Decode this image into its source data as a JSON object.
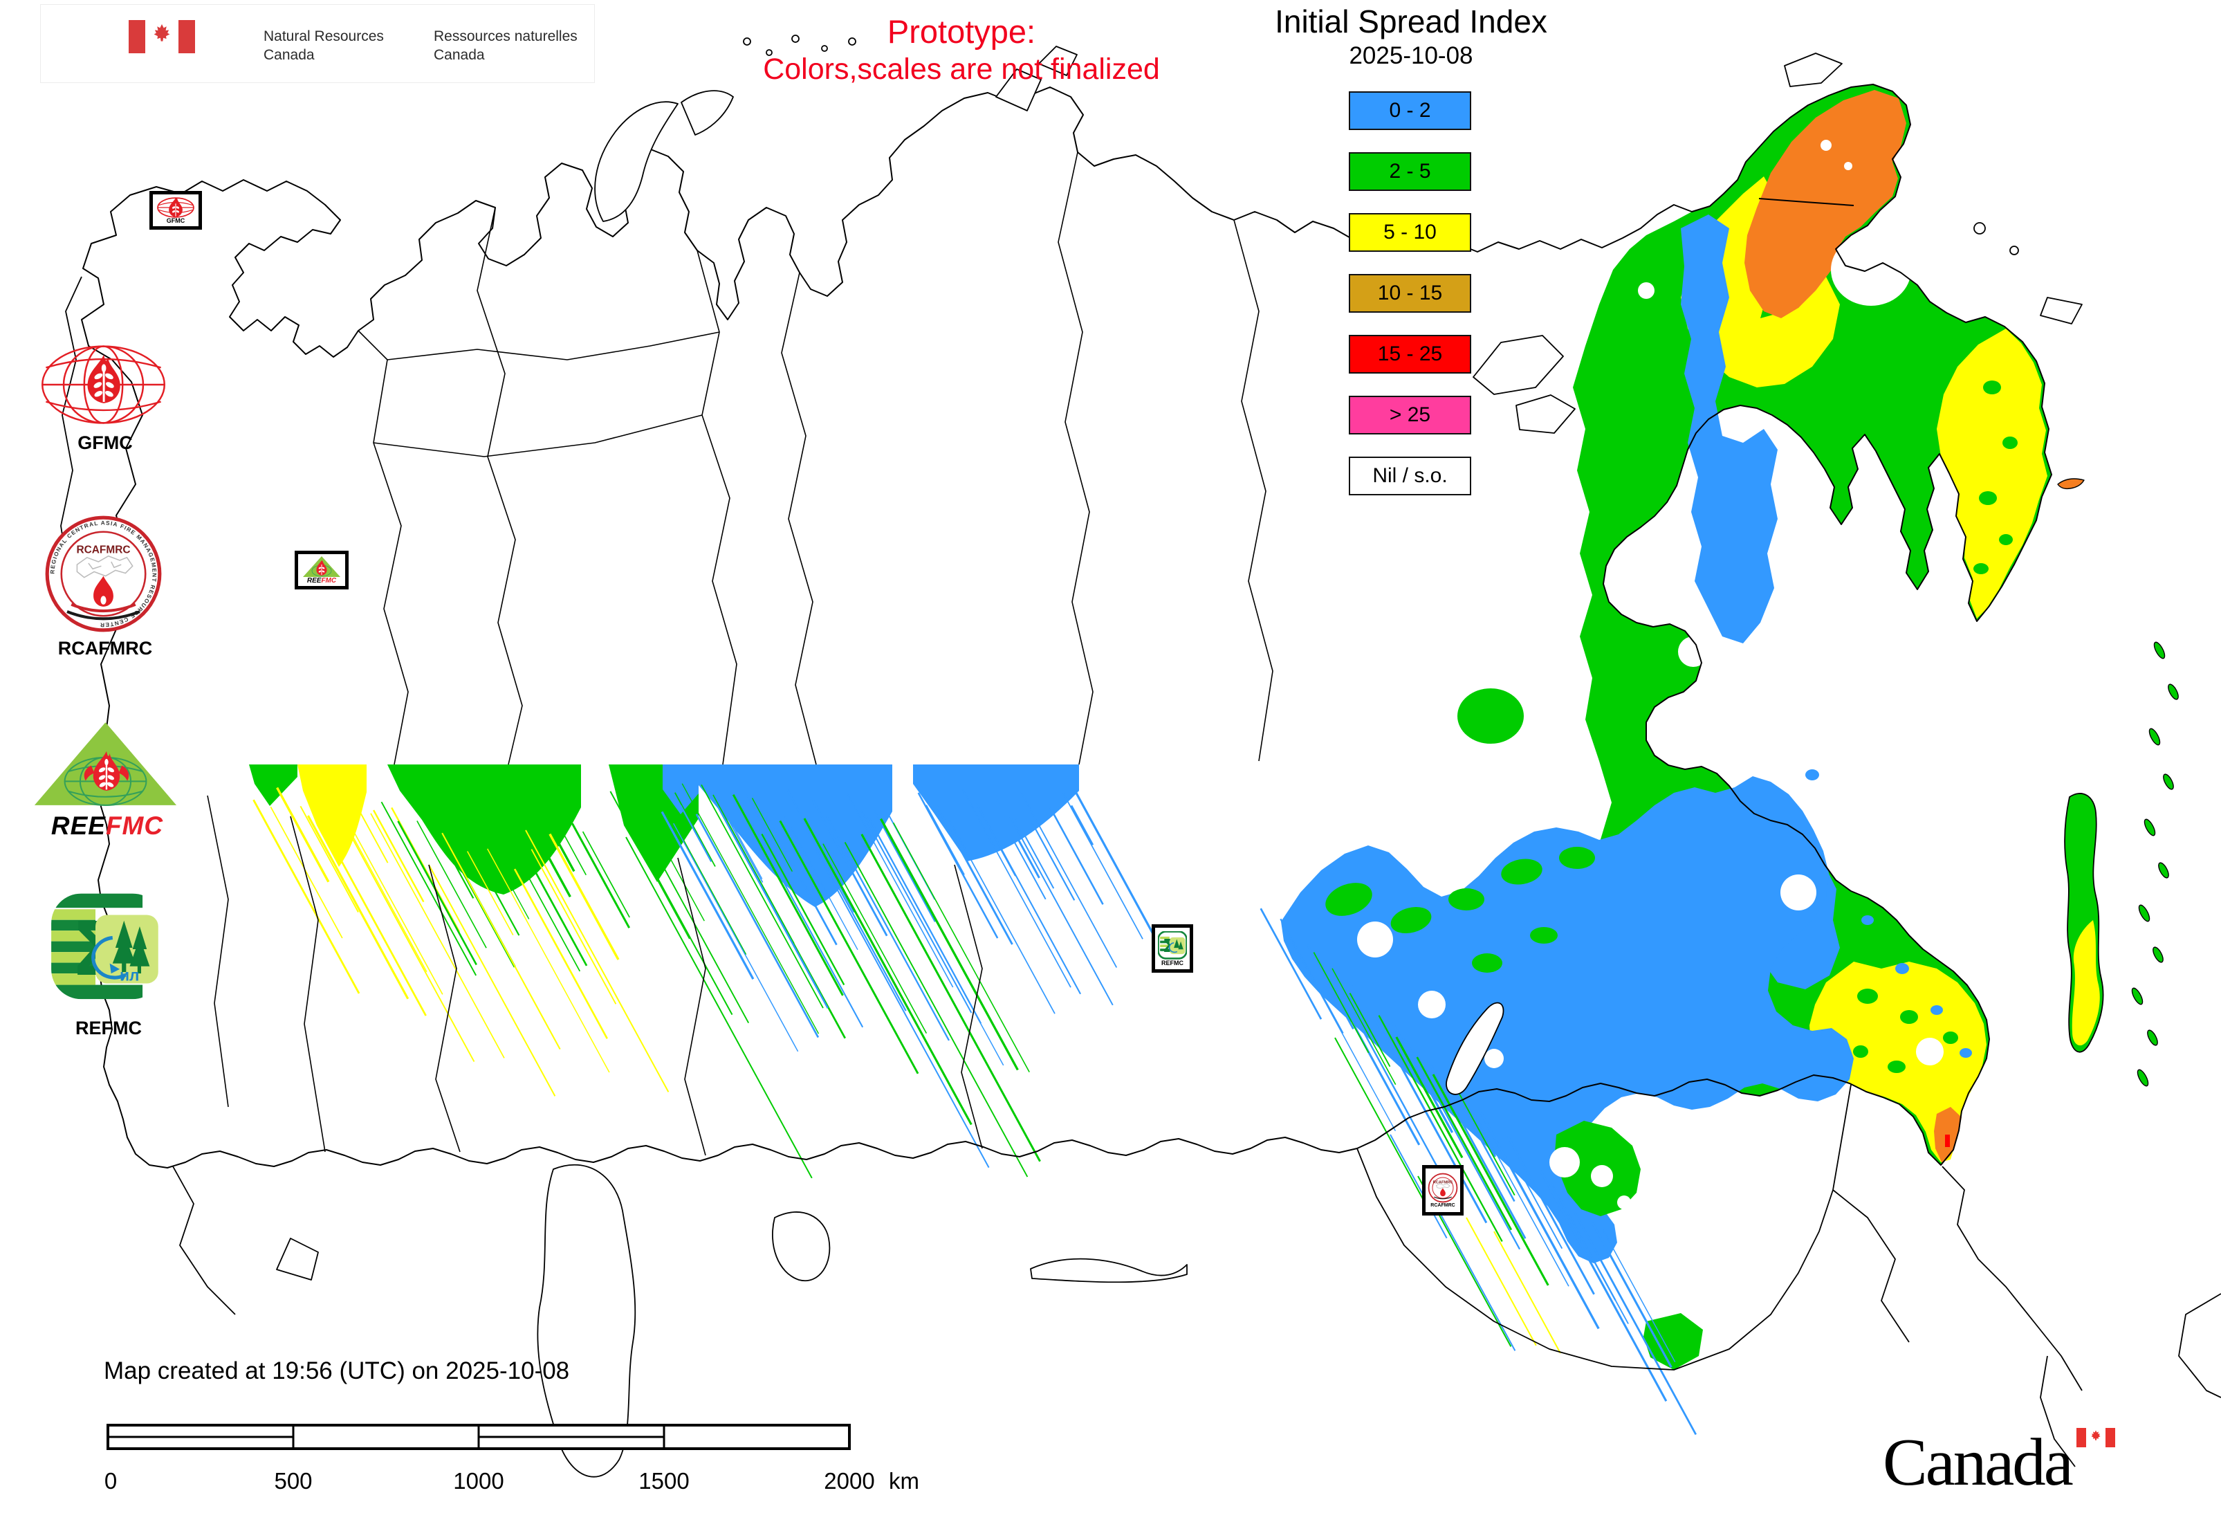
{
  "signature": {
    "en_line1": "Natural Resources",
    "en_line2": "Canada",
    "fr_line1": "Ressources naturelles",
    "fr_line2": "Canada"
  },
  "prototype": {
    "line1": "Prototype:",
    "line2": "Colors,scales are not finalized",
    "color": "#f2001e"
  },
  "title_block": {
    "title": "Initial Spread Index",
    "date": "2025-10-08"
  },
  "legend": {
    "items": [
      {
        "label": "0 - 2",
        "color": "#3399ff"
      },
      {
        "label": "2 - 5",
        "color": "#00cc00"
      },
      {
        "label": "5 - 10",
        "color": "#ffff00"
      },
      {
        "label": "10 - 15",
        "color": "#d4a017"
      },
      {
        "label": "15 - 25",
        "color": "#ff0000"
      },
      {
        "label": "> 25",
        "color": "#ff3d9e"
      },
      {
        "label": "Nil / s.o.",
        "color": "#ffffff"
      }
    ]
  },
  "logos": {
    "gfmc": {
      "label": "GFMC"
    },
    "rcafmrc": {
      "label": "RCAFMRC",
      "ring_text": "REGIONAL CENTRAL ASIA FIRE MANAGEMENT RESOURCE CENTER",
      "inner_text": "RCAFMRC"
    },
    "reefmc": {
      "label_black": "REE",
      "label_red": "FMC"
    },
    "refmc": {
      "label": "REFMC",
      "sigma": "Σ",
      "inner_text": "ил"
    }
  },
  "map": {
    "created_text": "Map created at 19:56 (UTC) on 2025-10-08",
    "markers": {
      "gfmc": "GFMC",
      "reefmc_black": "REE",
      "reefmc_red": "FMC",
      "refmc": "REFMC",
      "rcafmrc": "RCAFMRC"
    },
    "data_colors": {
      "isi_0_2": "#3399ff",
      "isi_2_5": "#00cc00",
      "isi_5_10": "#ffff00",
      "isi_10_15_map": "#f57e20",
      "isi_15_25": "#ff0000"
    }
  },
  "scalebar": {
    "labels": [
      "0",
      "500",
      "1000",
      "1500",
      "2000"
    ],
    "unit": "km"
  },
  "wordmark": {
    "text": "Canada"
  }
}
